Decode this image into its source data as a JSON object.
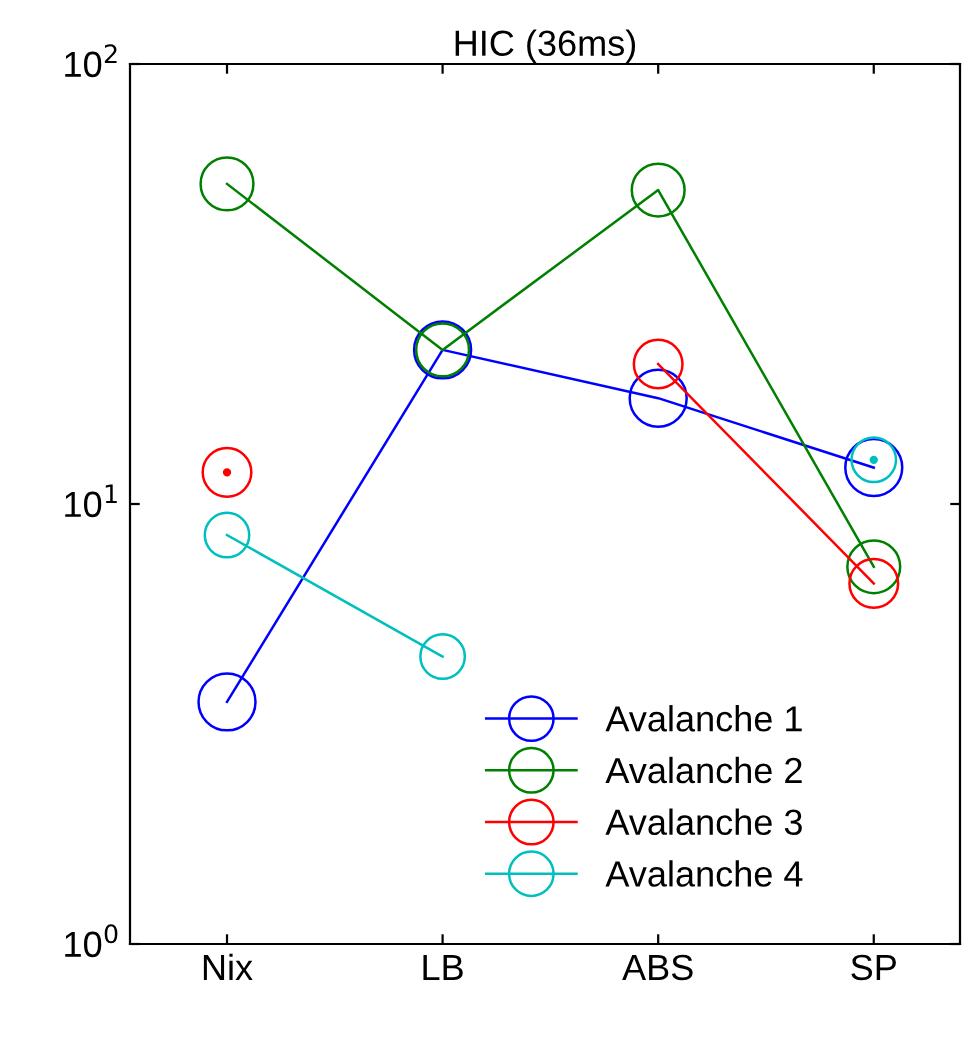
{
  "chart_data": {
    "type": "line",
    "title": "HIC (36ms)",
    "categories": [
      "Nix",
      "LB",
      "ABS",
      "SP"
    ],
    "series": [
      {
        "name": "Avalanche 1",
        "color": "#0000ff",
        "values": [
          3.55,
          22.4,
          17.4,
          12.1
        ]
      },
      {
        "name": "Avalanche 2",
        "color": "#008000",
        "values": [
          53.4,
          22.4,
          51.7,
          7.2
        ]
      },
      {
        "name": "Avalanche 3",
        "color": "#ff0000",
        "values": [
          11.8,
          null,
          20.8,
          6.6
        ]
      },
      {
        "name": "Avalanche 4",
        "color": "#00bfbf",
        "values": [
          8.5,
          4.5,
          null,
          12.6
        ]
      }
    ],
    "log": "y",
    "ylim": [
      1,
      100
    ],
    "yticks": [
      {
        "value": 1,
        "label": "10$^{0}$"
      },
      {
        "value": 10,
        "label": "10$^{1}$"
      },
      {
        "value": 100,
        "label": "10$^{2}$"
      }
    ],
    "marker": "circle",
    "line_style": "solid",
    "legend": "bottom right",
    "grid": false
  }
}
